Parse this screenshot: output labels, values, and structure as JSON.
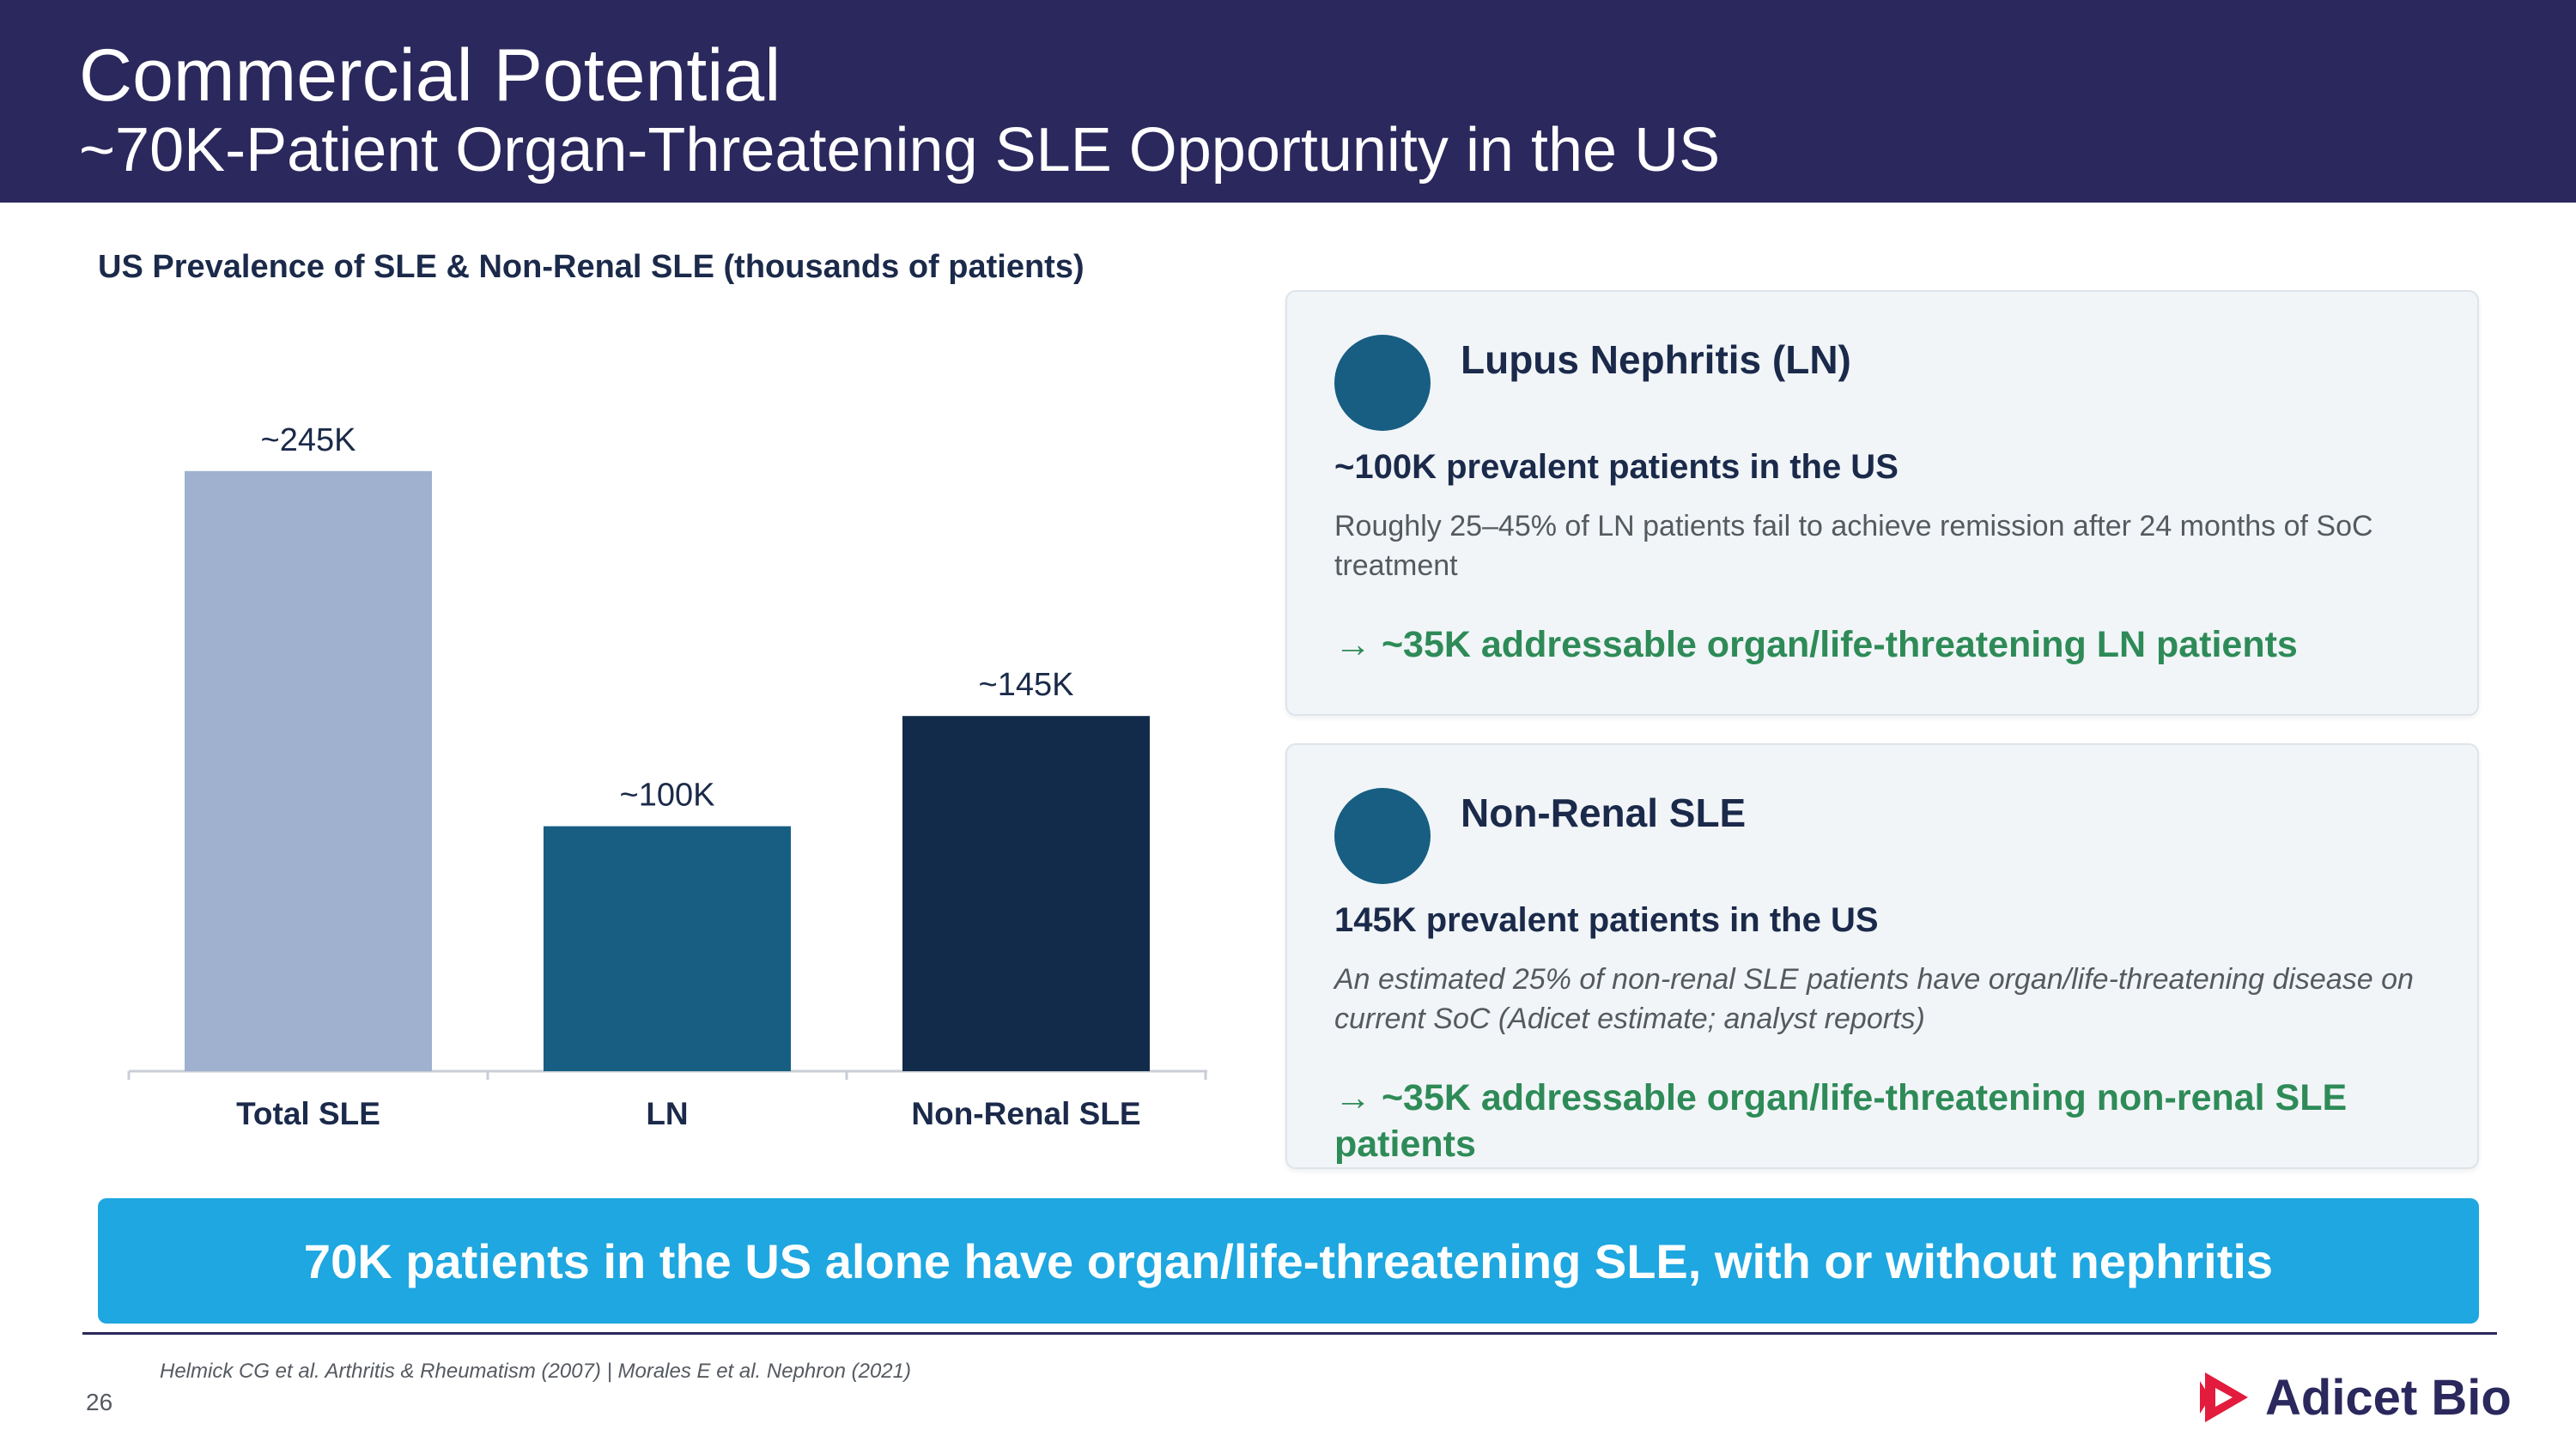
{
  "header": {
    "title": "Commercial Potential",
    "subtitle": "~70K-Patient Organ-Threatening SLE Opportunity in the US"
  },
  "chart_heading": "US Prevalence of SLE & Non-Renal SLE (thousands of patients)",
  "chart_data": {
    "type": "bar",
    "categories": [
      "Total SLE",
      "LN",
      "Non-Renal SLE"
    ],
    "values": [
      245,
      100,
      145
    ],
    "data_labels": [
      "~245K",
      "~100K",
      "~145K"
    ],
    "colors": [
      "#9fb1cf",
      "#175e82",
      "#132b4a"
    ],
    "title": "US Prevalence of SLE & Non-Renal SLE (thousands of patients)",
    "xlabel": "",
    "ylabel": "",
    "ylim": [
      0,
      260
    ],
    "grid": false,
    "legend": "none"
  },
  "cards": [
    {
      "icon": "circle-icon",
      "title": "Lupus Nephritis (LN)",
      "stat": "~100K prevalent patients in the US",
      "description": "Roughly 25–45% of LN patients fail to achieve remission after 24 months of SoC treatment",
      "callout": "→  ~35K addressable organ/life-threatening LN patients"
    },
    {
      "icon": "circle-icon",
      "title": "Non-Renal SLE",
      "stat": "145K prevalent patients in the US",
      "description": "An estimated 25% of non-renal SLE patients have organ/life-threatening disease on current SoC (Adicet estimate; analyst reports)",
      "callout": "→  ~35K addressable organ/life-threatening non-renal SLE patients"
    }
  ],
  "banner": "70K patients in the US alone have organ/life-threatening SLE, with or without nephritis",
  "footnote": "Helmick CG et al. Arthritis & Rheumatism (2007)  | Morales E et al. Nephron (2021)",
  "page_number": "26",
  "logo": {
    "text": "Adicet Bio",
    "color": "#e31b3c"
  }
}
